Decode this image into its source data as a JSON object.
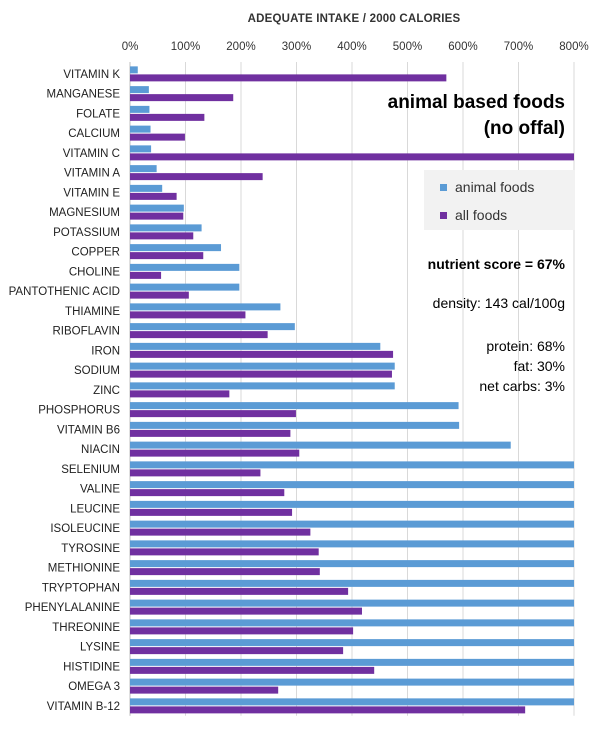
{
  "chart_data": {
    "type": "bar",
    "orientation": "horizontal",
    "title": "ADEQUATE INTAKE / 2000 CALORIES",
    "xlim": [
      0,
      800
    ],
    "x_ticks": [
      "0%",
      "100%",
      "200%",
      "300%",
      "400%",
      "500%",
      "600%",
      "700%",
      "800%"
    ],
    "grid": true,
    "legend_position": "right",
    "categories": [
      "VITAMIN K",
      "MANGANESE",
      "FOLATE",
      "CALCIUM",
      "VITAMIN C",
      "VITAMIN A",
      "VITAMIN E",
      "MAGNESIUM",
      "POTASSIUM",
      "COPPER",
      "CHOLINE",
      "PANTOTHENIC ACID",
      "THIAMINE",
      "RIBOFLAVIN",
      "IRON",
      "SODIUM",
      "ZINC",
      "PHOSPHORUS",
      "VITAMIN B6",
      "NIACIN",
      "SELENIUM",
      "VALINE",
      "LEUCINE",
      "ISOLEUCINE",
      "TYROSINE",
      "METHIONINE",
      "TRYPTOPHAN",
      "PHENYLALANINE",
      "THREONINE",
      "LYSINE",
      "HISTIDINE",
      "OMEGA 3",
      "VITAMIN B-12"
    ],
    "series": [
      {
        "name": "animal foods",
        "color": "#5b9bd5",
        "values": [
          14,
          34,
          35,
          37,
          38,
          48,
          58,
          97,
          129,
          164,
          197,
          197,
          271,
          297,
          451,
          477,
          477,
          592,
          593,
          686,
          800,
          800,
          800,
          800,
          800,
          800,
          800,
          800,
          800,
          800,
          800,
          800,
          800
        ]
      },
      {
        "name": "all foods",
        "color": "#7030a0",
        "values": [
          570,
          186,
          134,
          99,
          800,
          239,
          84,
          96,
          114,
          132,
          56,
          106,
          208,
          248,
          474,
          472,
          179,
          299,
          289,
          305,
          235,
          278,
          292,
          325,
          340,
          342,
          393,
          418,
          402,
          384,
          440,
          267,
          712
        ]
      }
    ]
  },
  "annotations": {
    "title_line1": "animal based foods",
    "title_line2": "(no offal)",
    "nutrient_score": "nutrient score = 67%",
    "density": "density: 143 cal/100g",
    "protein": "protein: 68%",
    "fat": "fat: 30%",
    "net_carbs": "net carbs: 3%"
  }
}
